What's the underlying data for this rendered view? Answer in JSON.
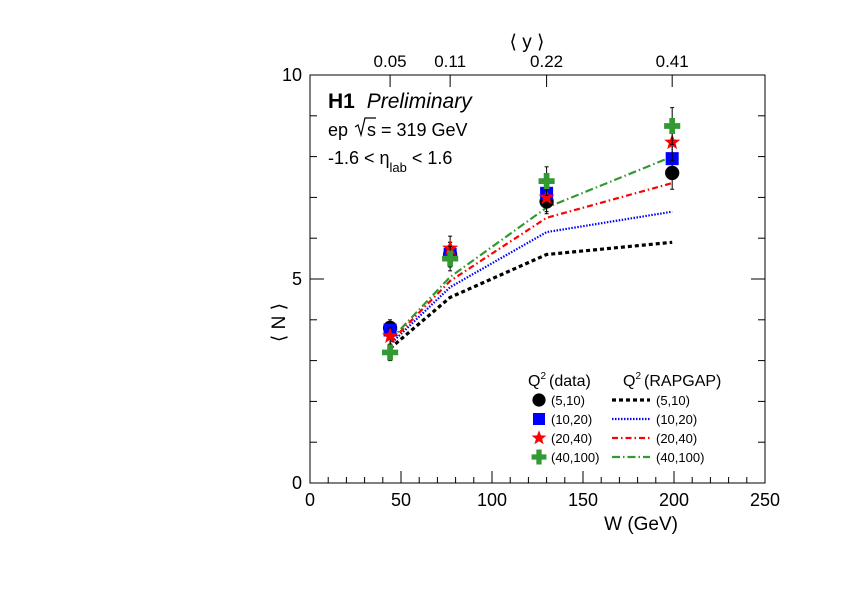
{
  "chart_data": {
    "type": "scatter",
    "title": "",
    "xlabel": "W (GeV)",
    "ylabel": "⟨ N ⟩",
    "top_axis_label": "⟨ y ⟩",
    "xlim": [
      0,
      250
    ],
    "ylim": [
      0,
      10
    ],
    "x_ticks": [
      0,
      50,
      100,
      150,
      200,
      250
    ],
    "y_ticks": [
      0,
      5,
      10
    ],
    "top_ticks": [
      {
        "w": 44,
        "label": "0.05"
      },
      {
        "w": 77,
        "label": "0.11"
      },
      {
        "w": 130,
        "label": "0.22"
      },
      {
        "w": 199,
        "label": "0.41"
      }
    ],
    "annotations": {
      "experiment": "H1",
      "status": "Preliminary",
      "energy_prefix": "ep",
      "energy_sqrt": "s",
      "energy_value": " = 319 GeV",
      "eta_left": "-1.6 < η",
      "eta_sub": "lab",
      "eta_right": " < 1.6"
    },
    "legend": {
      "data_header": "(data)",
      "mc_header": "(RAPGAP)",
      "q2_symbol": "Q",
      "q2_sup": "2"
    },
    "data_series": [
      {
        "name": "(5,10)",
        "color": "#000000",
        "marker": "circle",
        "points": [
          {
            "x": 44,
            "y": 3.8,
            "err": 0.2
          },
          {
            "x": 77,
            "y": 5.6,
            "err": 0.3
          },
          {
            "x": 130,
            "y": 6.9,
            "err": 0.3
          },
          {
            "x": 199,
            "y": 7.6,
            "err": 0.4
          }
        ]
      },
      {
        "name": "(10,20)",
        "color": "#0000ff",
        "marker": "square",
        "points": [
          {
            "x": 44,
            "y": 3.75,
            "err": 0.2
          },
          {
            "x": 77,
            "y": 5.6,
            "err": 0.3
          },
          {
            "x": 130,
            "y": 7.1,
            "err": 0.3
          },
          {
            "x": 199,
            "y": 7.95,
            "err": 0.4
          }
        ]
      },
      {
        "name": "(20,40)",
        "color": "#ff0000",
        "marker": "star",
        "points": [
          {
            "x": 44,
            "y": 3.6,
            "err": 0.2
          },
          {
            "x": 77,
            "y": 5.75,
            "err": 0.3
          },
          {
            "x": 130,
            "y": 7.0,
            "err": 0.35
          },
          {
            "x": 199,
            "y": 8.35,
            "err": 0.45
          }
        ]
      },
      {
        "name": "(40,100)",
        "color": "#339933",
        "marker": "cross",
        "points": [
          {
            "x": 44,
            "y": 3.2,
            "err": 0.2
          },
          {
            "x": 77,
            "y": 5.5,
            "err": 0.3
          },
          {
            "x": 130,
            "y": 7.4,
            "err": 0.35
          },
          {
            "x": 199,
            "y": 8.75,
            "err": 0.45
          }
        ]
      }
    ],
    "mc_series": [
      {
        "name": "(5,10)",
        "color": "#000000",
        "dash": "4,3",
        "width": 3.2,
        "points": [
          {
            "x": 44,
            "y": 3.3
          },
          {
            "x": 77,
            "y": 4.55
          },
          {
            "x": 130,
            "y": 5.6
          },
          {
            "x": 199,
            "y": 5.9
          }
        ]
      },
      {
        "name": "(10,20)",
        "color": "#0000ff",
        "dash": "1.5,1.5",
        "width": 2.2,
        "points": [
          {
            "x": 44,
            "y": 3.4
          },
          {
            "x": 77,
            "y": 4.8
          },
          {
            "x": 130,
            "y": 6.15
          },
          {
            "x": 199,
            "y": 6.65
          }
        ]
      },
      {
        "name": "(20,40)",
        "color": "#ff0000",
        "dash": "6,3,1.5,3",
        "width": 2.2,
        "points": [
          {
            "x": 44,
            "y": 3.45
          },
          {
            "x": 77,
            "y": 4.95
          },
          {
            "x": 130,
            "y": 6.5
          },
          {
            "x": 199,
            "y": 7.35
          }
        ]
      },
      {
        "name": "(40,100)",
        "color": "#339933",
        "dash": "8,3,1.5,3",
        "width": 2.2,
        "points": [
          {
            "x": 44,
            "y": 3.5
          },
          {
            "x": 77,
            "y": 5.05
          },
          {
            "x": 130,
            "y": 6.75
          },
          {
            "x": 199,
            "y": 8.0
          }
        ]
      }
    ]
  }
}
